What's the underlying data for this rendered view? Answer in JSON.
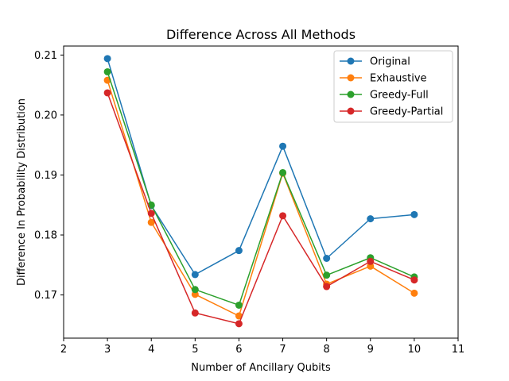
{
  "chart_data": {
    "type": "line",
    "title": "Difference Across All Methods",
    "xlabel": "Number of Ancillary Qubits",
    "ylabel": "Difference In Probability Distribution",
    "xlim": [
      2,
      11
    ],
    "ylim": [
      0.1628,
      0.2115
    ],
    "xticks": [
      2,
      3,
      4,
      5,
      6,
      7,
      8,
      9,
      10,
      11
    ],
    "xtick_labels": [
      "2",
      "3",
      "4",
      "5",
      "6",
      "7",
      "8",
      "9",
      "10",
      "11"
    ],
    "yticks": [
      0.17,
      0.18,
      0.19,
      0.2,
      0.21
    ],
    "ytick_labels": [
      "0.17",
      "0.18",
      "0.19",
      "0.20",
      "0.21"
    ],
    "grid": false,
    "legend_position": "top-right",
    "x": [
      3,
      4,
      5,
      6,
      7,
      8,
      9,
      10
    ],
    "series": [
      {
        "name": "Original",
        "color": "#1f77b4",
        "values": [
          0.2094,
          0.1849,
          0.1734,
          0.1774,
          0.1948,
          0.1761,
          0.1827,
          0.1834
        ]
      },
      {
        "name": "Exhaustive",
        "color": "#ff7f0e",
        "values": [
          0.2058,
          0.1821,
          0.1701,
          0.1665,
          0.1903,
          0.1718,
          0.1748,
          0.1703
        ]
      },
      {
        "name": "Greedy-Full",
        "color": "#2ca02c",
        "values": [
          0.2072,
          0.185,
          0.1709,
          0.1683,
          0.1904,
          0.1733,
          0.1762,
          0.173
        ]
      },
      {
        "name": "Greedy-Partial",
        "color": "#d62728",
        "values": [
          0.2037,
          0.1836,
          0.167,
          0.1652,
          0.1832,
          0.1714,
          0.1756,
          0.1725
        ]
      }
    ]
  }
}
